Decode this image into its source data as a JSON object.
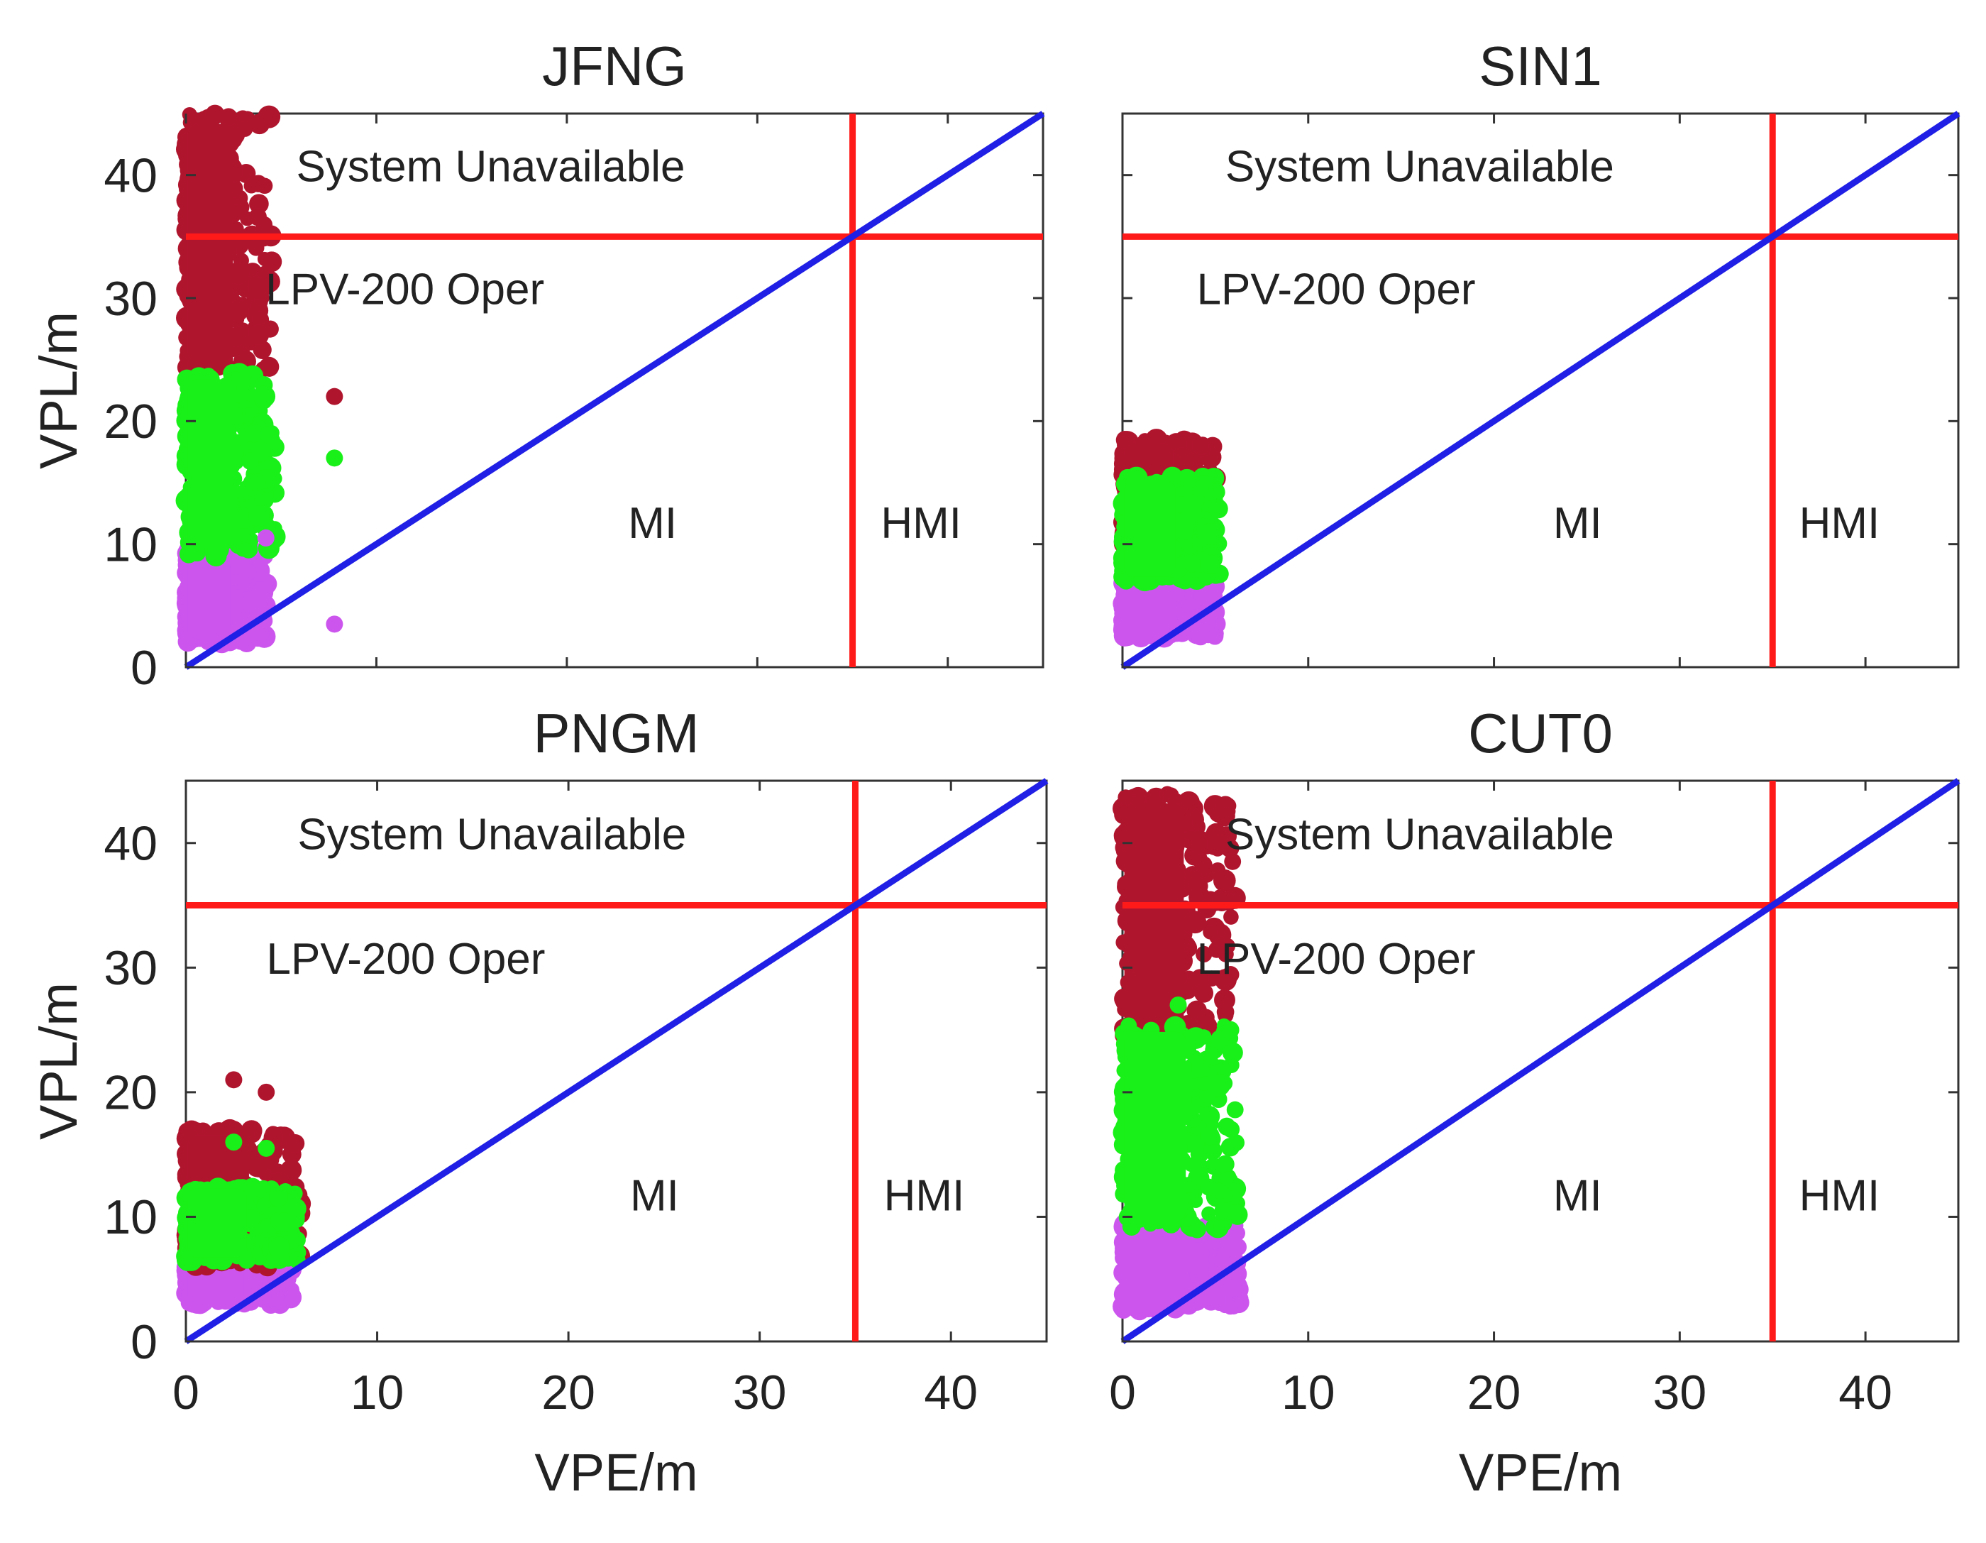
{
  "figure": {
    "colors": {
      "diagonal": "#1f1fe6",
      "alert_limit": "#ff1a1a",
      "unavailable": "#b0152e",
      "moderate": "#19f019",
      "low": "#cc55ee",
      "axis": "#333333",
      "text": "#222222"
    }
  },
  "chart_data": [
    {
      "type": "scatter",
      "title": "JFNG",
      "xlabel": "",
      "ylabel": "VPL/m",
      "xlim": [
        0,
        45
      ],
      "ylim": [
        0,
        45
      ],
      "xticks": [],
      "yticks": [
        "0",
        "10",
        "20",
        "30",
        "40"
      ],
      "alert_limit": 35,
      "region_labels": {
        "unavailable": "System Unavailable",
        "operation": "LPV-200 Oper",
        "mi": "MI",
        "hmi": "HMI"
      },
      "clusters": [
        {
          "name": "unavailable",
          "vpl": [
            24,
            45
          ],
          "vpe_max": 4.5
        },
        {
          "name": "moderate",
          "vpl": [
            9,
            24
          ],
          "vpe_max": 4.8
        },
        {
          "name": "low",
          "vpl": [
            2,
            9.5
          ],
          "vpe_max": 4.2
        }
      ],
      "outliers": [
        {
          "x": 7.8,
          "y": 22,
          "series": "unavailable"
        },
        {
          "x": 7.8,
          "y": 17,
          "series": "moderate"
        },
        {
          "x": 7.8,
          "y": 3.5,
          "series": "low"
        },
        {
          "x": 4.2,
          "y": 10.5,
          "series": "low"
        }
      ]
    },
    {
      "type": "scatter",
      "title": "SIN1",
      "xlabel": "",
      "ylabel": "",
      "xlim": [
        0,
        45
      ],
      "ylim": [
        0,
        45
      ],
      "xticks": [],
      "yticks": [],
      "alert_limit": 35,
      "region_labels": {
        "unavailable": "System Unavailable",
        "operation": "LPV-200 Oper",
        "mi": "MI",
        "hmi": "HMI"
      },
      "clusters": [
        {
          "name": "unavailable",
          "vpl": [
            10,
            18.5
          ],
          "vpe_max": 5.0
        },
        {
          "name": "moderate",
          "vpl": [
            7,
            15.5
          ],
          "vpe_max": 5.2
        },
        {
          "name": "low",
          "vpl": [
            2.5,
            7
          ],
          "vpe_max": 5.0
        }
      ],
      "outliers": [
        {
          "x": 4.2,
          "y": 18,
          "series": "unavailable"
        },
        {
          "x": 4.2,
          "y": 14.5,
          "series": "moderate"
        }
      ]
    },
    {
      "type": "scatter",
      "title": "PNGM",
      "xlabel": "VPE/m",
      "ylabel": "VPL/m",
      "xlim": [
        0,
        45
      ],
      "ylim": [
        0,
        45
      ],
      "xticks": [
        "0",
        "10",
        "20",
        "30",
        "40"
      ],
      "yticks": [
        "0",
        "10",
        "20",
        "30",
        "40"
      ],
      "alert_limit": 35,
      "region_labels": {
        "unavailable": "System Unavailable",
        "operation": "LPV-200 Oper",
        "mi": "MI",
        "hmi": "HMI"
      },
      "clusters": [
        {
          "name": "unavailable",
          "vpl": [
            6,
            17
          ],
          "vpe_max": 6.0
        },
        {
          "name": "moderate",
          "vpl": [
            6.5,
            12.5
          ],
          "vpe_max": 5.8
        },
        {
          "name": "low",
          "vpl": [
            3,
            6.5
          ],
          "vpe_max": 5.5
        }
      ],
      "outliers": [
        {
          "x": 2.5,
          "y": 21,
          "series": "unavailable"
        },
        {
          "x": 4.2,
          "y": 20,
          "series": "unavailable"
        },
        {
          "x": 2.5,
          "y": 16,
          "series": "moderate"
        },
        {
          "x": 4.2,
          "y": 15.5,
          "series": "moderate"
        }
      ]
    },
    {
      "type": "scatter",
      "title": "CUT0",
      "xlabel": "VPE/m",
      "ylabel": "",
      "xlim": [
        0,
        45
      ],
      "ylim": [
        0,
        45
      ],
      "xticks": [
        "0",
        "10",
        "20",
        "30",
        "40"
      ],
      "yticks": [],
      "alert_limit": 35,
      "region_labels": {
        "unavailable": "System Unavailable",
        "operation": "LPV-200 Oper",
        "mi": "MI",
        "hmi": "HMI"
      },
      "clusters": [
        {
          "name": "unavailable",
          "vpl": [
            24,
            44
          ],
          "vpe_max": 6.0
        },
        {
          "name": "moderate",
          "vpl": [
            9,
            25.5
          ],
          "vpe_max": 6.2
        },
        {
          "name": "low",
          "vpl": [
            2.5,
            9.5
          ],
          "vpe_max": 6.3
        }
      ],
      "outliers": [
        {
          "x": 3.0,
          "y": 27,
          "series": "moderate"
        },
        {
          "x": 4.5,
          "y": 26,
          "series": "unavailable"
        }
      ]
    }
  ]
}
